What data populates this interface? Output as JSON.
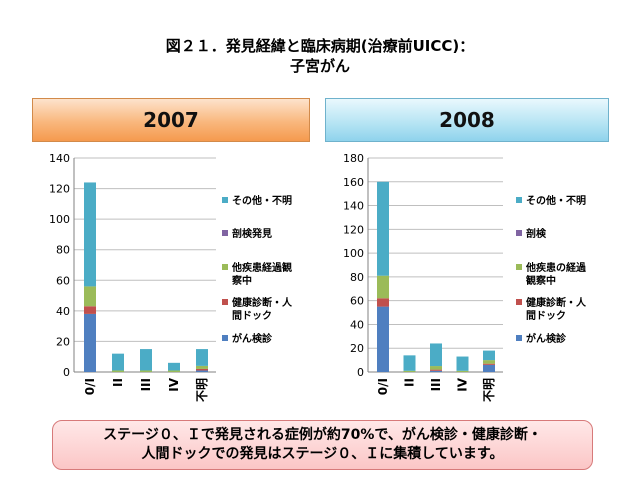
{
  "title": {
    "line1": "図２１．発見経緯と臨床病期(治療前UICC)：",
    "line2": "子宮がん"
  },
  "bottom_note": {
    "line1": "ステージ０、Ｉで発見される症例が約70%で、がん検診・健康診断・",
    "line2": "人間ドックでの発見はステージ０、Ｉに集積しています。"
  },
  "colors": {
    "gan_kenshin": "#4f7fc0",
    "kenko_shindan": "#c0504d",
    "tashikkan": "#9bbb59",
    "bouken": "#8064a2",
    "sonota": "#4bacc6"
  },
  "chart_data": [
    {
      "type": "bar",
      "stacked": true,
      "title": "2007",
      "categories": [
        "0/I",
        "II",
        "III",
        "IV",
        "不明"
      ],
      "ylim": [
        0,
        140
      ],
      "yticks": [
        0,
        20,
        40,
        60,
        80,
        100,
        120,
        140
      ],
      "grid": true,
      "legend_position": "right",
      "series": [
        {
          "name": "がん検診",
          "color": "#4f7fc0",
          "values": [
            38,
            0,
            0,
            0,
            1
          ]
        },
        {
          "name": "健康診断・人間ドック",
          "color": "#c0504d",
          "values": [
            5,
            0,
            0,
            0,
            1
          ]
        },
        {
          "name": "他疾患経過観察中",
          "color": "#9bbb59",
          "values": [
            13,
            1,
            1,
            1,
            2
          ]
        },
        {
          "name": "剖検発見",
          "color": "#8064a2",
          "values": [
            0,
            0,
            0,
            0,
            0
          ]
        },
        {
          "name": "その他・不明",
          "color": "#4bacc6",
          "values": [
            68,
            11,
            14,
            5,
            11
          ]
        }
      ]
    },
    {
      "type": "bar",
      "stacked": true,
      "title": "2008",
      "categories": [
        "0/I",
        "II",
        "III",
        "IV",
        "不明"
      ],
      "ylim": [
        0,
        180
      ],
      "yticks": [
        0,
        20,
        40,
        60,
        80,
        100,
        120,
        140,
        160,
        180
      ],
      "grid": true,
      "legend_position": "right",
      "series": [
        {
          "name": "がん検診",
          "color": "#4f7fc0",
          "values": [
            55,
            0,
            1,
            0,
            6
          ]
        },
        {
          "name": "健康診断・人間ドック",
          "color": "#c0504d",
          "values": [
            7,
            0,
            1,
            0,
            1
          ]
        },
        {
          "name": "他疾患の経過観察中",
          "color": "#9bbb59",
          "values": [
            19,
            1,
            3,
            1,
            3
          ]
        },
        {
          "name": "剖検",
          "color": "#8064a2",
          "values": [
            0,
            0,
            0,
            0,
            0
          ]
        },
        {
          "name": "その他・不明",
          "color": "#4bacc6",
          "values": [
            79,
            13,
            19,
            12,
            8
          ]
        }
      ]
    }
  ]
}
